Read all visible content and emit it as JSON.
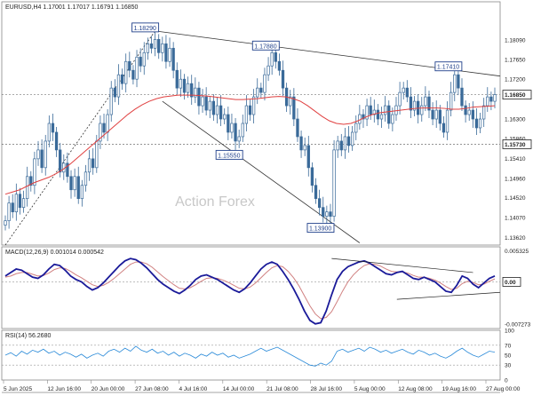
{
  "chart_data": [
    {
      "type": "candlestick",
      "symbol": "EURUSD",
      "timeframe": "H4",
      "ohlc_header": {
        "open": "1.17001",
        "high": "1.17017",
        "low": "1.16791",
        "close": "1.16850"
      },
      "ylim": [
        1.1345,
        1.1895
      ],
      "y_ticks": [
        "1.18090",
        "1.17650",
        "1.17200",
        "1.16850",
        "1.16300",
        "1.15860",
        "1.15730",
        "1.15410",
        "1.14960",
        "1.14520",
        "1.14070",
        "1.13620"
      ],
      "y_tick_values": [
        1.1809,
        1.1765,
        1.172,
        1.1685,
        1.163,
        1.1586,
        1.1573,
        1.1541,
        1.1496,
        1.1452,
        1.1407,
        1.1362
      ],
      "current_price_label": "1.16850",
      "support_label": "1.15730",
      "support_value": 1.1573,
      "current_value": 1.1685,
      "annotations": [
        {
          "text": "1.18290",
          "value": 1.1829,
          "bar": 41
        },
        {
          "text": "1.17880",
          "value": 1.1788,
          "bar": 74
        },
        {
          "text": "1.15550",
          "value": 1.1555,
          "bar": 64
        },
        {
          "text": "1.13900",
          "value": 1.139,
          "bar": 89
        },
        {
          "text": "1.17410",
          "value": 1.1741,
          "bar": 124
        }
      ],
      "close_series": [
        1.14,
        1.144,
        1.142,
        1.146,
        1.143,
        1.145,
        1.15,
        1.148,
        1.154,
        1.156,
        1.152,
        1.158,
        1.162,
        1.16,
        1.156,
        1.151,
        1.153,
        1.15,
        1.147,
        1.15,
        1.145,
        1.148,
        1.151,
        1.154,
        1.152,
        1.158,
        1.162,
        1.16,
        1.164,
        1.17,
        1.168,
        1.173,
        1.171,
        1.176,
        1.174,
        1.172,
        1.177,
        1.175,
        1.178,
        1.18,
        1.179,
        1.181,
        1.178,
        1.18,
        1.176,
        1.179,
        1.174,
        1.17,
        1.172,
        1.169,
        1.171,
        1.168,
        1.17,
        1.166,
        1.168,
        1.165,
        1.167,
        1.164,
        1.166,
        1.163,
        1.164,
        1.16,
        1.162,
        1.158,
        1.159,
        1.162,
        1.166,
        1.164,
        1.168,
        1.17,
        1.169,
        1.173,
        1.175,
        1.178,
        1.176,
        1.174,
        1.17,
        1.166,
        1.168,
        1.163,
        1.159,
        1.156,
        1.157,
        1.152,
        1.148,
        1.145,
        1.143,
        1.141,
        1.142,
        1.141,
        1.156,
        1.158,
        1.156,
        1.159,
        1.157,
        1.16,
        1.162,
        1.164,
        1.163,
        1.166,
        1.164,
        1.165,
        1.163,
        1.164,
        1.166,
        1.162,
        1.164,
        1.166,
        1.169,
        1.17,
        1.168,
        1.165,
        1.167,
        1.164,
        1.166,
        1.168,
        1.165,
        1.163,
        1.165,
        1.162,
        1.16,
        1.165,
        1.169,
        1.173,
        1.17,
        1.166,
        1.164,
        1.165,
        1.163,
        1.161,
        1.163,
        1.166,
        1.168,
        1.167,
        1.1685
      ],
      "series": [
        {
          "name": "MA",
          "values": [
            1.146,
            1.1465,
            1.147,
            1.1478,
            1.1486,
            1.1492,
            1.1498,
            1.1506,
            1.1516,
            1.1528,
            1.1542,
            1.1556,
            1.157,
            1.1584,
            1.1598,
            1.1612,
            1.1626,
            1.164,
            1.1652,
            1.1662,
            1.167,
            1.1676,
            1.168,
            1.1682,
            1.1684,
            1.1684,
            1.1684,
            1.1683,
            1.1682,
            1.168,
            1.1678,
            1.1676,
            1.1674,
            1.1674,
            1.1675,
            1.1676,
            1.1678,
            1.168,
            1.1681,
            1.168,
            1.1676,
            1.167,
            1.166,
            1.1648,
            1.1636,
            1.1626,
            1.162,
            1.1618,
            1.162,
            1.1626,
            1.1634,
            1.164,
            1.1644,
            1.1646,
            1.1648,
            1.165,
            1.1652,
            1.1654,
            1.1655,
            1.1655,
            1.1655,
            1.1654,
            1.1652,
            1.1652,
            1.1654,
            1.1657,
            1.1658,
            1.1659,
            1.166
          ]
        }
      ],
      "watermark": "Action Forex",
      "x_ticks": [
        "5 Jun 2025",
        "12 Jun 16:00",
        "20 Jun 00:00",
        "27 Jun 08:00",
        "4 Jul 16:00",
        "14 Jul 00:00",
        "21 Jul 08:00",
        "28 Jul 16:00",
        "5 Aug 00:00",
        "12 Aug 08:00",
        "19 Aug 16:00",
        "27 Aug 00:00"
      ],
      "grid": false,
      "colors": {
        "candle": "#3a6a99",
        "ma": "#e04040",
        "trend": "#222222",
        "dashed": "#222222"
      }
    },
    {
      "type": "line",
      "title": "MACD(12,26,9) 0.001014 0.000542",
      "y_ticks": [
        "0.005325",
        "0.00",
        "-0.007273"
      ],
      "y_tick_values": [
        0.005325,
        0.0,
        -0.007273
      ],
      "current_label": "0.00",
      "ylim": [
        -0.008,
        0.006
      ],
      "series": [
        {
          "name": "MACD",
          "values": [
            0.001,
            0.0016,
            0.0022,
            0.002,
            0.0014,
            0.0008,
            0.0006,
            0.0012,
            0.0022,
            0.003,
            0.0028,
            0.002,
            0.001,
            0.0004,
            0.0,
            -0.0008,
            -0.0014,
            -0.001,
            -0.0002,
            0.0008,
            0.0018,
            0.0028,
            0.0036,
            0.004,
            0.0038,
            0.0032,
            0.0024,
            0.0014,
            0.0004,
            -0.0004,
            -0.001,
            -0.0016,
            -0.002,
            -0.0014,
            -0.0006,
            0.0004,
            0.001,
            0.0012,
            0.0008,
            0.0004,
            -0.0002,
            -0.0008,
            -0.0014,
            -0.0018,
            -0.0012,
            -0.0002,
            0.001,
            0.0022,
            0.003,
            0.0034,
            0.003,
            0.0018,
            0.0004,
            -0.0012,
            -0.003,
            -0.005,
            -0.0066,
            -0.0072,
            -0.007,
            -0.005,
            -0.0022,
            0.0004,
            0.0018,
            0.0026,
            0.003,
            0.0034,
            0.0036,
            0.0032,
            0.0026,
            0.002,
            0.0014,
            0.0012,
            0.0016,
            0.0018,
            0.0012,
            0.0006,
            0.0004,
            0.0008,
            0.0004,
            0.0,
            -0.0008,
            -0.0016,
            -0.0018,
            -0.0006,
            0.001,
            0.0006,
            -0.0004,
            -0.001,
            -0.0002,
            0.0006,
            0.001
          ]
        },
        {
          "name": "Signal",
          "values": [
            0.0008,
            0.001,
            0.0014,
            0.0016,
            0.0016,
            0.0013,
            0.001,
            0.0011,
            0.0015,
            0.0021,
            0.0024,
            0.0023,
            0.0018,
            0.0012,
            0.0007,
            0.0001,
            -0.0005,
            -0.0008,
            -0.0006,
            -0.0001,
            0.0006,
            0.0014,
            0.0022,
            0.003,
            0.0034,
            0.0034,
            0.0031,
            0.0025,
            0.0017,
            0.0009,
            0.0002,
            -0.0005,
            -0.0011,
            -0.0012,
            -0.001,
            -0.0005,
            0.0001,
            0.0006,
            0.0007,
            0.0006,
            0.0003,
            -0.0001,
            -0.0006,
            -0.0011,
            -0.0012,
            -0.0009,
            -0.0002,
            0.0007,
            0.0016,
            0.0024,
            0.0028,
            0.0026,
            0.0018,
            0.0007,
            -0.0007,
            -0.0024,
            -0.0041,
            -0.0055,
            -0.0063,
            -0.0061,
            -0.0051,
            -0.0034,
            -0.0016,
            0.0,
            0.0012,
            0.0021,
            0.0028,
            0.0031,
            0.003,
            0.0027,
            0.0022,
            0.0018,
            0.0017,
            0.0017,
            0.0015,
            0.0011,
            0.0008,
            0.0008,
            0.0006,
            0.0003,
            -0.0002,
            -0.0008,
            -0.0013,
            -0.0011,
            -0.0003,
            0.0001,
            -0.0001,
            -0.0005,
            -0.0004,
            0.0001,
            0.0005
          ]
        }
      ],
      "colors": {
        "macd": "#1a1a99",
        "signal": "#d08080",
        "trend": "#222222"
      }
    },
    {
      "type": "line",
      "title": "RSI(14) 56.2680",
      "y_ticks": [
        "100",
        "70",
        "50",
        "30",
        "0"
      ],
      "y_tick_values": [
        100,
        70,
        50,
        30,
        0
      ],
      "levels": [
        70,
        30
      ],
      "ylim": [
        0,
        100
      ],
      "series": [
        {
          "name": "RSI",
          "values": [
            50,
            55,
            48,
            58,
            52,
            60,
            56,
            62,
            54,
            58,
            50,
            56,
            52,
            46,
            52,
            44,
            50,
            54,
            48,
            58,
            62,
            56,
            64,
            58,
            68,
            60,
            56,
            62,
            54,
            58,
            50,
            56,
            48,
            54,
            50,
            44,
            52,
            48,
            56,
            50,
            54,
            46,
            50,
            44,
            48,
            52,
            58,
            64,
            58,
            62,
            66,
            60,
            54,
            48,
            42,
            36,
            30,
            28,
            34,
            30,
            38,
            58,
            62,
            56,
            60,
            64,
            58,
            66,
            62,
            56,
            60,
            54,
            58,
            62,
            56,
            52,
            60,
            56,
            50,
            54,
            48,
            44,
            50,
            58,
            64,
            56,
            50,
            46,
            52,
            58,
            56
          ]
        }
      ],
      "colors": {
        "rsi": "#2a8ad8",
        "level": "#999999"
      }
    }
  ]
}
